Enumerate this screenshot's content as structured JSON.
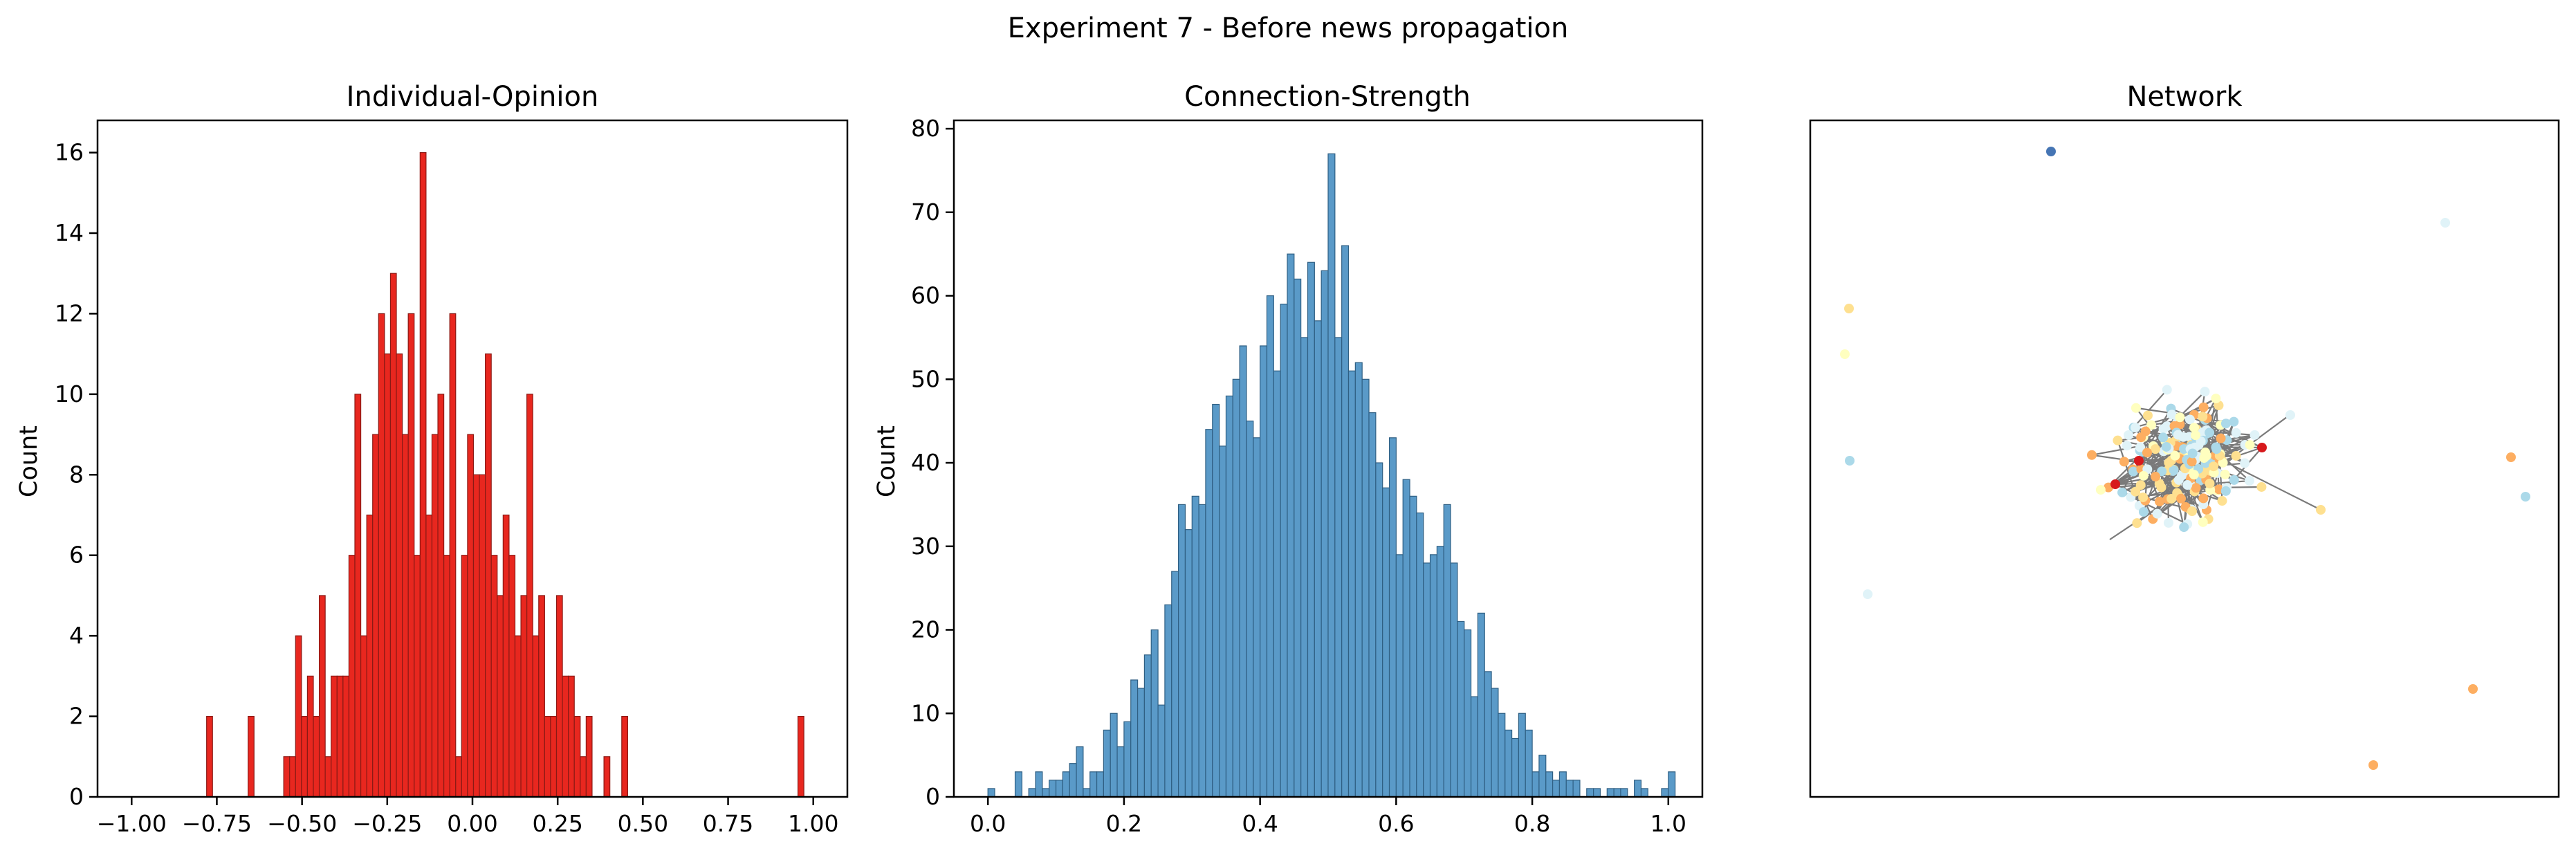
{
  "figure": {
    "title": "Experiment 7 - Before news propagation"
  },
  "chart_data": [
    {
      "type": "bar",
      "title": "Individual-Opinion",
      "xlabel": "",
      "ylabel": "Count",
      "color": "#e8271f",
      "edge_color": "#8a1a15",
      "xlim": [
        -1.1,
        1.1
      ],
      "ylim": [
        0,
        16.8
      ],
      "xticks": [
        -1.0,
        -0.75,
        -0.5,
        -0.25,
        0.0,
        0.25,
        0.5,
        0.75,
        1.0
      ],
      "xtick_labels": [
        "−1.00",
        "−0.75",
        "−0.50",
        "−0.25",
        "0.00",
        "0.25",
        "0.50",
        "0.75",
        "1.00"
      ],
      "yticks": [
        0,
        2,
        4,
        6,
        8,
        10,
        12,
        14,
        16
      ],
      "ytick_labels": [
        "0",
        "2",
        "4",
        "6",
        "8",
        "10",
        "12",
        "14",
        "16"
      ],
      "bin_start": -0.78,
      "bin_width": 0.0174,
      "values": [
        2,
        0,
        0,
        0,
        0,
        0,
        0,
        2,
        0,
        0,
        0,
        0,
        0,
        1,
        1,
        4,
        2,
        3,
        2,
        5,
        1,
        3,
        3,
        3,
        6,
        10,
        4,
        7,
        9,
        12,
        11,
        13,
        11,
        9,
        12,
        6,
        16,
        7,
        9,
        10,
        6,
        12,
        1,
        6,
        9,
        8,
        8,
        11,
        6,
        5,
        7,
        6,
        4,
        5,
        10,
        4,
        5,
        2,
        2,
        5,
        3,
        3,
        2,
        1,
        2,
        0,
        0,
        1,
        0,
        0,
        2,
        0,
        0,
        0,
        0,
        0,
        0,
        0,
        0,
        0,
        0,
        0,
        0,
        0,
        0,
        0,
        0,
        0,
        0,
        0,
        0,
        0,
        0,
        0,
        0,
        0,
        0,
        0,
        0,
        0,
        0,
        0,
        0,
        0,
        0,
        0,
        0,
        0,
        0,
        0,
        0,
        0,
        0,
        0,
        0,
        0,
        0,
        0,
        0,
        0,
        0,
        0,
        0,
        0,
        0,
        0
      ],
      "extra_bars": [
        {
          "x": 0.955,
          "value": 2
        }
      ]
    },
    {
      "type": "bar",
      "title": "Connection-Strength",
      "xlabel": "",
      "ylabel": "Count",
      "color": "#5a9ac8",
      "edge_color": "#2f5f83",
      "xlim": [
        -0.05,
        1.05
      ],
      "ylim": [
        0,
        81
      ],
      "xticks": [
        0.0,
        0.2,
        0.4,
        0.6,
        0.8,
        1.0
      ],
      "xtick_labels": [
        "0.0",
        "0.2",
        "0.4",
        "0.6",
        "0.8",
        "1.0"
      ],
      "yticks": [
        0,
        10,
        20,
        30,
        40,
        50,
        60,
        70,
        80
      ],
      "ytick_labels": [
        "0",
        "10",
        "20",
        "30",
        "40",
        "50",
        "60",
        "70",
        "80"
      ],
      "bin_start": 0.0,
      "bin_width": 0.01,
      "values": [
        1,
        0,
        0,
        0,
        3,
        0,
        1,
        3,
        1,
        2,
        2,
        3,
        4,
        6,
        1,
        3,
        3,
        8,
        10,
        6,
        9,
        14,
        13,
        17,
        20,
        11,
        23,
        27,
        35,
        32,
        36,
        35,
        44,
        47,
        42,
        48,
        50,
        54,
        45,
        43,
        54,
        60,
        51,
        59,
        65,
        62,
        55,
        64,
        57,
        63,
        77,
        55,
        66,
        51,
        52,
        50,
        46,
        40,
        37,
        43,
        29,
        38,
        36,
        34,
        28,
        29,
        30,
        35,
        28,
        21,
        20,
        12,
        22,
        15,
        13,
        10,
        8,
        7,
        10,
        8,
        3,
        5,
        3,
        2,
        3,
        2,
        2,
        0,
        1,
        1,
        0,
        1,
        1,
        1,
        0,
        2,
        1,
        0,
        0,
        1,
        3
      ]
    },
    {
      "type": "scatter",
      "title": "Network",
      "note": "network graph with colored nodes and gray edges; no axis ticks",
      "node_colors": [
        "#d7191c",
        "#f46d43",
        "#fdae61",
        "#fee090",
        "#ffffbf",
        "#e0f3f8",
        "#abd9e9",
        "#74add1",
        "#4575b4"
      ],
      "edge_color": "#7a7a7a"
    }
  ]
}
